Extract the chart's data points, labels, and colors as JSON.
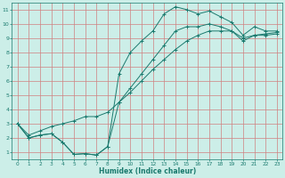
{
  "xlabel": "Humidex (Indice chaleur)",
  "bg_color": "#cceee8",
  "line_color": "#1a7a6e",
  "grid_color": "#d08080",
  "xlim": [
    -0.5,
    23.5
  ],
  "ylim": [
    0.5,
    11.5
  ],
  "xticks": [
    0,
    1,
    2,
    3,
    4,
    5,
    6,
    7,
    8,
    9,
    10,
    11,
    12,
    13,
    14,
    15,
    16,
    17,
    18,
    19,
    20,
    21,
    22,
    23
  ],
  "yticks": [
    1,
    2,
    3,
    4,
    5,
    6,
    7,
    8,
    9,
    10,
    11
  ],
  "line1_x": [
    0,
    1,
    2,
    3,
    4,
    5,
    6,
    7,
    8,
    9,
    10,
    11,
    12,
    13,
    14,
    15,
    16,
    17,
    18,
    19,
    20,
    21,
    22,
    23
  ],
  "line1_y": [
    3.0,
    2.0,
    2.2,
    2.3,
    1.7,
    0.85,
    0.9,
    0.8,
    1.4,
    6.5,
    8.0,
    8.8,
    9.5,
    10.7,
    11.2,
    11.0,
    10.7,
    10.9,
    10.5,
    10.1,
    9.2,
    9.8,
    9.5,
    9.5
  ],
  "line2_x": [
    0,
    1,
    2,
    3,
    4,
    5,
    6,
    7,
    8,
    9,
    10,
    11,
    12,
    13,
    14,
    15,
    16,
    17,
    18,
    19,
    20,
    21,
    22,
    23
  ],
  "line2_y": [
    3.0,
    2.0,
    2.2,
    2.3,
    1.7,
    0.85,
    0.9,
    0.8,
    1.4,
    4.5,
    5.5,
    6.5,
    7.5,
    8.5,
    9.5,
    9.8,
    9.8,
    10.0,
    9.8,
    9.5,
    8.8,
    9.2,
    9.2,
    9.3
  ],
  "line3_x": [
    0,
    1,
    2,
    3,
    4,
    5,
    6,
    7,
    8,
    9,
    10,
    11,
    12,
    13,
    14,
    15,
    16,
    17,
    18,
    19,
    20,
    21,
    22,
    23
  ],
  "line3_y": [
    3.0,
    2.2,
    2.5,
    2.8,
    3.0,
    3.2,
    3.5,
    3.5,
    3.8,
    4.5,
    5.2,
    6.0,
    6.8,
    7.5,
    8.2,
    8.8,
    9.2,
    9.5,
    9.5,
    9.5,
    9.0,
    9.2,
    9.3,
    9.4
  ]
}
